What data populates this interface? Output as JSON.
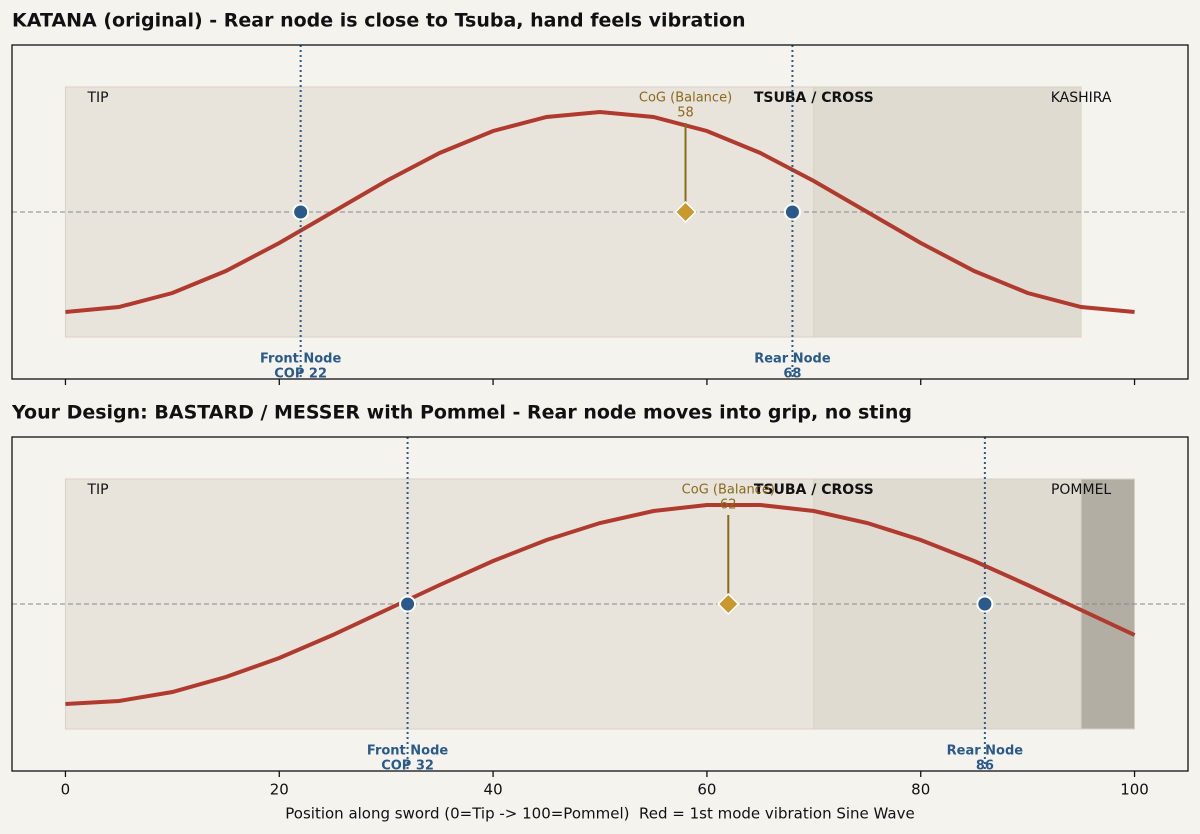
{
  "chart_data": [
    {
      "type": "line",
      "title": "KATANA (original) - Rear node is close to Tsuba, hand feels vibration",
      "x": [
        0,
        5,
        10,
        15,
        20,
        25,
        30,
        35,
        40,
        45,
        50,
        55,
        60,
        65,
        70,
        75,
        80,
        85,
        90,
        95,
        100
      ],
      "values": [
        -1,
        -0.95,
        -0.81,
        -0.59,
        -0.31,
        0,
        0.31,
        0.59,
        0.81,
        0.95,
        1,
        0.95,
        0.81,
        0.59,
        0.31,
        0,
        -0.31,
        -0.59,
        -0.81,
        -0.95,
        -1
      ],
      "color": "#b03a2e",
      "xlim": [
        -5,
        105
      ],
      "ylim": [
        -1.67,
        1.67
      ],
      "xticks": [
        0,
        20,
        40,
        60,
        80,
        100
      ],
      "show_tick_labels": false,
      "zones": [
        {
          "label": "TIP",
          "start": 0,
          "end": 70,
          "color": "#e8e4dc"
        },
        {
          "label": "TSUBA / CROSS",
          "start": 70,
          "end": 95,
          "color": "#e0dbd1"
        },
        {
          "label": "KASHIRA",
          "start": 95,
          "end": 100,
          "color": null
        }
      ],
      "nodes": [
        {
          "name": "Front Node",
          "label": "COP 22",
          "x": 22
        },
        {
          "name": "Rear Node",
          "label": "68",
          "x": 68
        }
      ],
      "cog": {
        "name": "CoG (Balance)",
        "x": 58
      }
    },
    {
      "type": "line",
      "title": "Your Design: BASTARD / MESSER with Pommel - Rear node moves into grip, no sting",
      "x": [
        0,
        5,
        10,
        15,
        20,
        25,
        30,
        35,
        40,
        45,
        50,
        55,
        60,
        65,
        70,
        75,
        80,
        85,
        90,
        95,
        100
      ],
      "values": [
        -1,
        -0.97,
        -0.88,
        -0.73,
        -0.54,
        -0.31,
        -0.06,
        0.19,
        0.43,
        0.64,
        0.81,
        0.93,
        0.99,
        0.99,
        0.93,
        0.81,
        0.64,
        0.43,
        0.19,
        -0.06,
        -0.31
      ],
      "color": "#b03a2e",
      "xlim": [
        -5,
        105
      ],
      "ylim": [
        -1.67,
        1.67
      ],
      "xticks": [
        0,
        20,
        40,
        60,
        80,
        100
      ],
      "show_tick_labels": true,
      "xlabel": "Position along sword (0=Tip -> 100=Pommel)  Red = 1st mode vibration Sine Wave",
      "zones": [
        {
          "label": "TIP",
          "start": 0,
          "end": 70,
          "color": "#e8e4dc"
        },
        {
          "label": "TSUBA / CROSS",
          "start": 70,
          "end": 95,
          "color": "#e0dbd1"
        },
        {
          "label": "POMMEL",
          "start": 95,
          "end": 100,
          "color": "#b3aea4"
        }
      ],
      "nodes": [
        {
          "name": "Front Node",
          "label": "COP 32",
          "x": 32
        },
        {
          "name": "Rear Node",
          "label": "86",
          "x": 86
        }
      ],
      "cog": {
        "name": "CoG (Balance)",
        "x": 62
      }
    }
  ]
}
